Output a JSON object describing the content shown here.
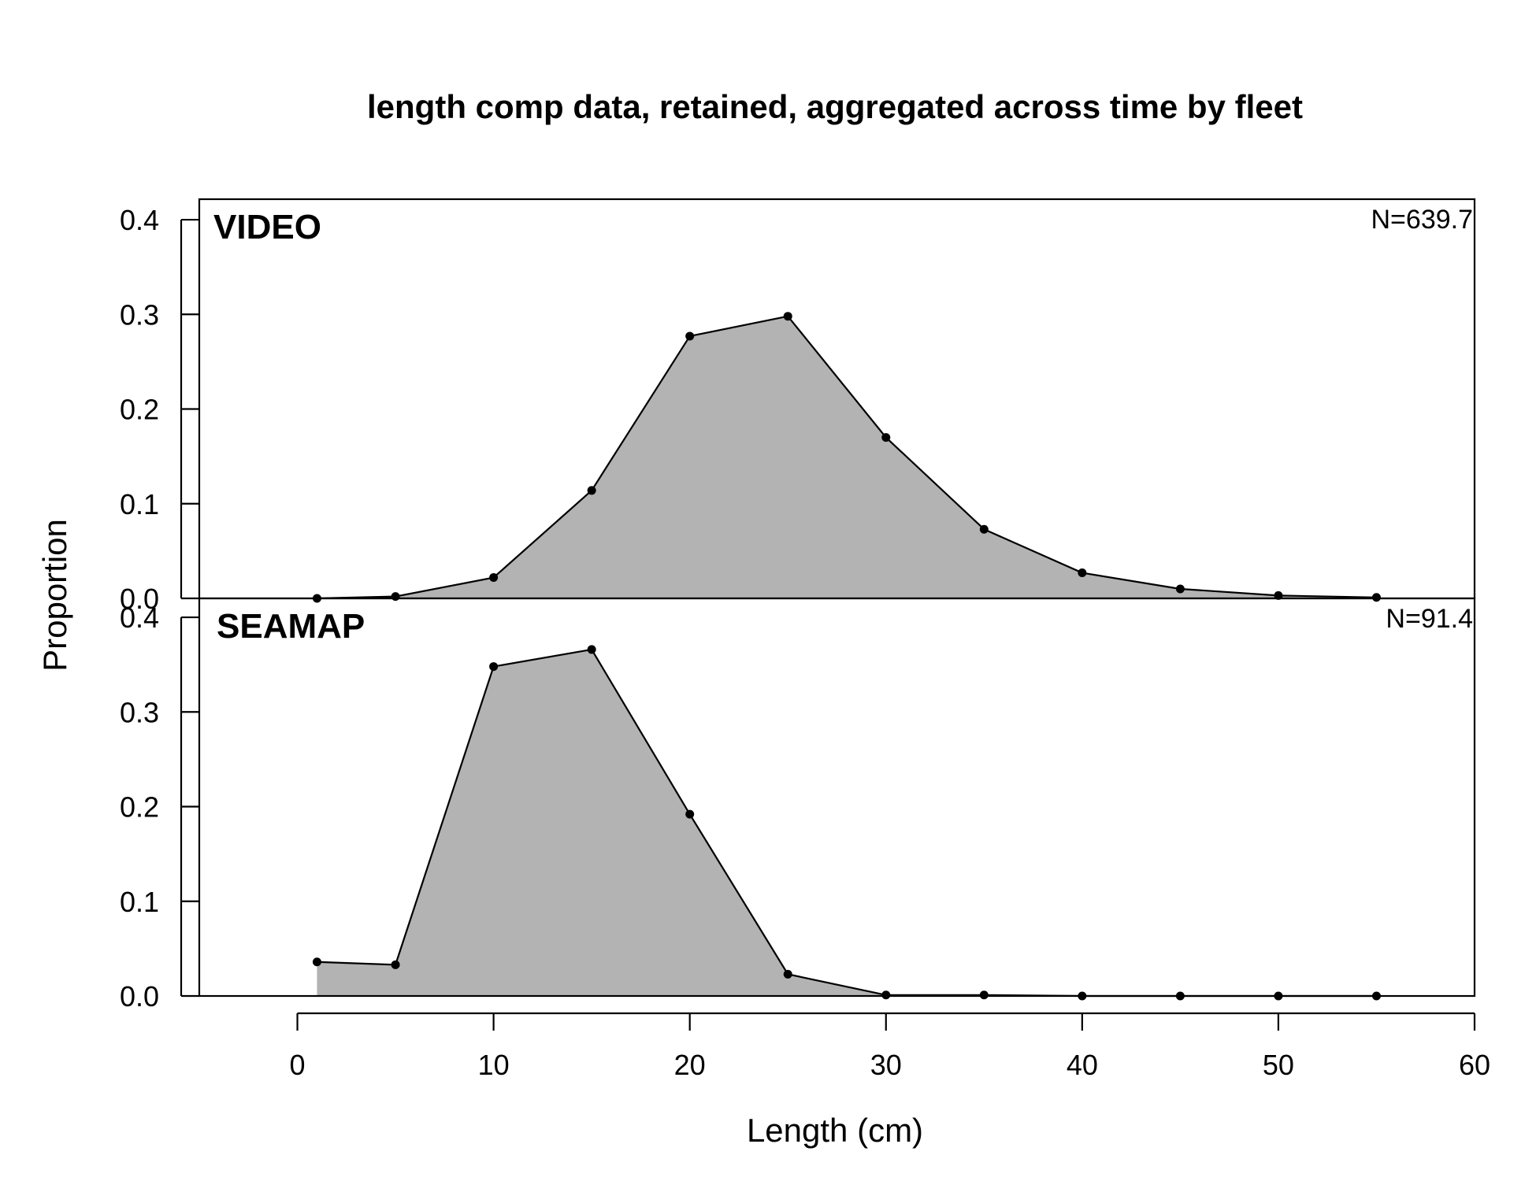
{
  "chart_data": {
    "type": "area",
    "title": "length comp data, retained, aggregated across time by fleet",
    "xlabel": "Length (cm)",
    "ylabel": "Proportion",
    "xlim": [
      -5,
      60
    ],
    "ylim": [
      0,
      0.42
    ],
    "x_ticks": [
      0,
      10,
      20,
      30,
      40,
      50,
      60
    ],
    "y_ticks": [
      0.0,
      0.1,
      0.2,
      0.3,
      0.4
    ],
    "y_tick_labels": [
      "0.0",
      "0.1",
      "0.2",
      "0.3",
      "0.4"
    ],
    "fill_color": "#b3b3b3",
    "line_color": "#000000",
    "panels": [
      {
        "name": "VIDEO",
        "n_label": "N=639.7",
        "x": [
          1,
          5,
          10,
          15,
          20,
          25,
          30,
          35,
          40,
          45,
          50,
          55
        ],
        "values": [
          0.0,
          0.002,
          0.022,
          0.114,
          0.277,
          0.298,
          0.17,
          0.073,
          0.027,
          0.01,
          0.003,
          0.001
        ]
      },
      {
        "name": "SEAMAP",
        "n_label": "N=91.4",
        "x": [
          1,
          5,
          10,
          15,
          20,
          25,
          30,
          35,
          40,
          45,
          50,
          55
        ],
        "values": [
          0.036,
          0.033,
          0.348,
          0.366,
          0.192,
          0.023,
          0.001,
          0.001,
          0.0,
          0.0,
          0.0,
          0.0
        ]
      }
    ]
  }
}
